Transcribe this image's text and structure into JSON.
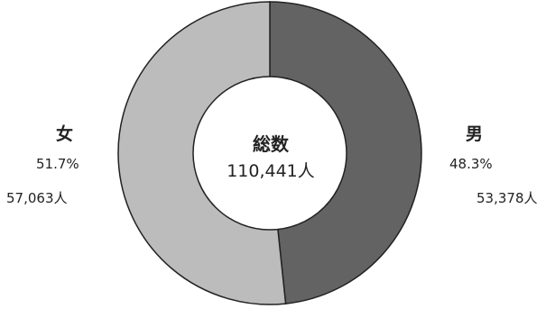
{
  "chart_data": {
    "type": "pie",
    "donut": true,
    "center_title": "総数",
    "center_value": "110,441人",
    "slices": [
      {
        "name": "男",
        "value": 53378,
        "percent": 48.3,
        "percent_label": "48.3%",
        "count_label": "53,378人",
        "color": "#636363"
      },
      {
        "name": "女",
        "value": 57063,
        "percent": 51.7,
        "percent_label": "51.7%",
        "count_label": "57,063人",
        "color": "#bcbcbc"
      }
    ],
    "legend": "none"
  }
}
